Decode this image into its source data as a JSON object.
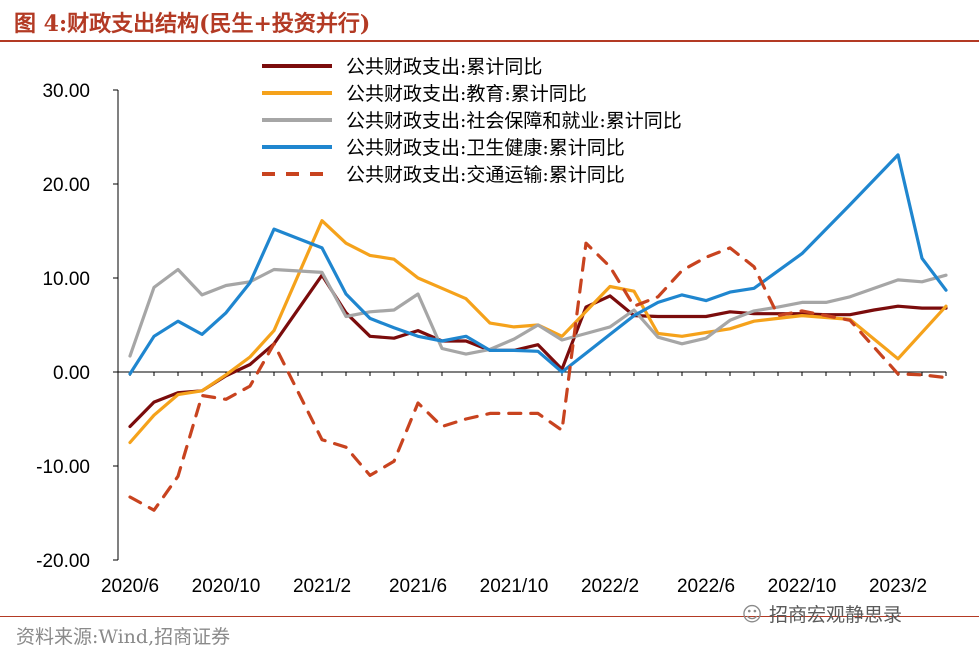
{
  "header": {
    "title": "图 4:财政支出结构(民生+投资并行)"
  },
  "footer": {
    "source": "资料来源:Wind,招商证券",
    "watermark": "招商宏观静思录"
  },
  "chart_data": {
    "type": "line",
    "title": "图 4:财政支出结构(民生+投资并行)",
    "xlabel": "",
    "ylabel": "",
    "ylim": [
      -20,
      30
    ],
    "yticks": [
      -20,
      -10,
      0,
      10,
      20,
      30
    ],
    "ytick_labels": [
      "-20.00",
      "-10.00",
      "0.00",
      "10.00",
      "20.00",
      "30.00"
    ],
    "x": [
      "2020/6",
      "2020/7",
      "2020/8",
      "2020/9",
      "2020/10",
      "2020/11",
      "2020/12",
      "2021/1",
      "2021/2",
      "2021/3",
      "2021/4",
      "2021/5",
      "2021/6",
      "2021/7",
      "2021/8",
      "2021/9",
      "2021/10",
      "2021/11",
      "2021/12",
      "2022/1",
      "2022/2",
      "2022/3",
      "2022/4",
      "2022/5",
      "2022/6",
      "2022/7",
      "2022/8",
      "2022/9",
      "2022/10",
      "2022/11",
      "2022/12",
      "2023/1",
      "2023/2",
      "2023/3",
      "2023/4"
    ],
    "x_tick_labels": [
      "2020/6",
      "2020/10",
      "2021/2",
      "2021/6",
      "2021/10",
      "2022/2",
      "2022/6",
      "2022/10",
      "2023/2"
    ],
    "legend_position": "top",
    "series": [
      {
        "name": "公共财政支出:累计同比",
        "color": "#7b0c0c",
        "dash": "solid",
        "values": [
          -5.8,
          -3.2,
          -2.2,
          -2.0,
          -0.4,
          0.8,
          3.0,
          null,
          10.3,
          6.3,
          3.8,
          3.6,
          4.4,
          3.3,
          3.3,
          2.3,
          2.3,
          2.9,
          0.3,
          6.9,
          8.1,
          6.0,
          5.9,
          5.9,
          5.9,
          6.4,
          6.2,
          6.2,
          6.2,
          6.1,
          6.1,
          6.6,
          7.0,
          6.8,
          6.8
        ]
      },
      {
        "name": "公共财政支出:教育:累计同比",
        "color": "#f5a21b",
        "dash": "solid",
        "values": [
          -7.5,
          -4.6,
          -2.4,
          -2.0,
          -0.3,
          1.6,
          4.4,
          null,
          16.1,
          13.7,
          12.4,
          12.0,
          10.0,
          8.9,
          7.8,
          5.2,
          4.8,
          5.0,
          3.8,
          null,
          9.1,
          8.6,
          4.1,
          3.8,
          4.2,
          4.6,
          5.4,
          5.7,
          6.0,
          5.8,
          5.6,
          null,
          1.4,
          null,
          7.0
        ]
      },
      {
        "name": "公共财政支出:社会保障和就业:累计同比",
        "color": "#a6a6a6",
        "dash": "solid",
        "values": [
          1.7,
          9.0,
          10.9,
          8.2,
          9.2,
          9.6,
          10.9,
          null,
          10.6,
          5.9,
          6.4,
          6.6,
          8.3,
          2.5,
          1.9,
          2.4,
          3.5,
          5.0,
          3.4,
          4.1,
          4.8,
          6.6,
          3.7,
          3.0,
          3.6,
          5.5,
          6.5,
          6.9,
          7.4,
          7.4,
          8.0,
          null,
          9.8,
          9.6,
          10.3
        ]
      },
      {
        "name": "公共财政支出:卫生健康:累计同比",
        "color": "#1f86cf",
        "dash": "solid",
        "values": [
          -0.2,
          3.8,
          5.4,
          4.0,
          6.3,
          9.5,
          15.2,
          null,
          13.2,
          8.3,
          5.7,
          4.7,
          3.8,
          3.3,
          3.8,
          2.3,
          2.3,
          2.2,
          0.0,
          2.0,
          4.0,
          6.0,
          7.4,
          8.2,
          7.6,
          8.5,
          8.9,
          null,
          12.6,
          null,
          17.8,
          null,
          23.1,
          12.1,
          8.7
        ]
      },
      {
        "name": "公共财政支出:交通运输:累计同比",
        "color": "#c8431f",
        "dash": "dashed",
        "values": [
          -13.3,
          -14.7,
          -11.1,
          -2.5,
          -2.9,
          -1.5,
          3.0,
          null,
          -7.2,
          -8.0,
          -11.0,
          -9.5,
          -3.3,
          -5.8,
          -5.0,
          -4.4,
          -4.4,
          -4.4,
          -6.2,
          13.7,
          11.2,
          7.0,
          8.0,
          10.8,
          12.2,
          13.2,
          11.2,
          6.0,
          6.5,
          6.0,
          5.5,
          null,
          -0.2,
          -0.3,
          -0.6
        ]
      }
    ]
  }
}
